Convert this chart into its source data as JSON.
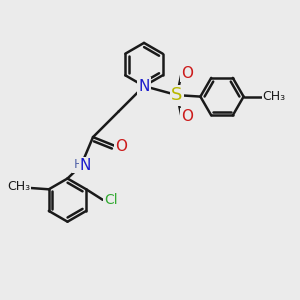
{
  "bg_color": "#ebebeb",
  "bond_color": "#1a1a1a",
  "bond_width": 1.8,
  "dbo": 0.12,
  "N_color": "#1a1acc",
  "O_color": "#cc1a1a",
  "S_color": "#b8b800",
  "Cl_color": "#33aa33",
  "H_color": "#5566aa",
  "C_color": "#1a1a1a",
  "font_size": 11,
  "fig_width": 3.0,
  "fig_height": 3.0,
  "dpi": 100,
  "xlim": [
    0,
    10
  ],
  "ylim": [
    0,
    10
  ]
}
